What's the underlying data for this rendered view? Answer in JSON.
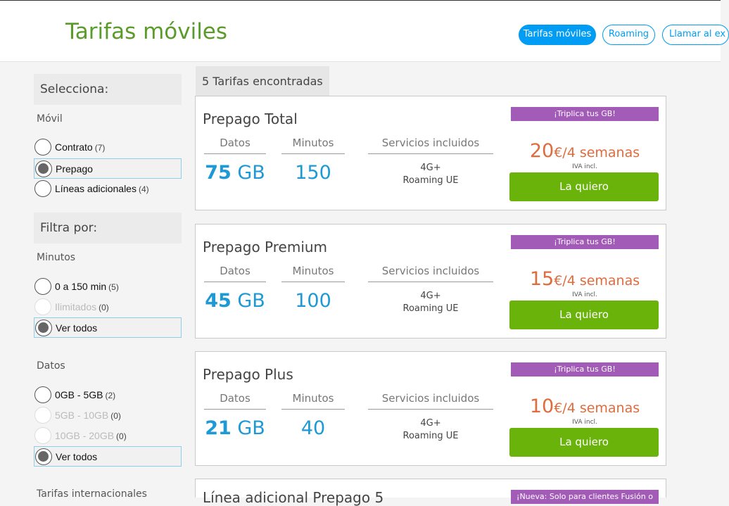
{
  "header": {
    "title": "Tarifas móviles",
    "nav": [
      "Tarifas móviles",
      "Roaming",
      "Llamar al ex"
    ]
  },
  "sidebar": {
    "select_title": "Selecciona:",
    "movil": {
      "label": "Móvil",
      "options": [
        {
          "label": "Contrato",
          "count": "(7)"
        },
        {
          "label": "Prepago",
          "count": ""
        },
        {
          "label": "Líneas adicionales",
          "count": "(4)"
        }
      ]
    },
    "filter_title": "Filtra por:",
    "minutos": {
      "label": "Minutos",
      "options": [
        {
          "label": "0 a 150 min",
          "count": "(5)"
        },
        {
          "label": "Ilimitados",
          "count": "(0)"
        },
        {
          "label": "Ver todos",
          "count": ""
        }
      ]
    },
    "datos": {
      "label": "Datos",
      "options": [
        {
          "label": "0GB - 5GB",
          "count": "(2)"
        },
        {
          "label": "5GB - 10GB",
          "count": "(0)"
        },
        {
          "label": "10GB - 20GB",
          "count": "(0)"
        },
        {
          "label": "Ver todos",
          "count": ""
        }
      ]
    },
    "internacionales_label": "Tarifas internacionales"
  },
  "results": {
    "count_label": "5 Tarifas encontradas",
    "col_datos": "Datos",
    "col_minutos": "Minutos",
    "col_servicios": "Servicios incluidos",
    "iva": "IVA incl.",
    "cta": "La quiero",
    "cards": [
      {
        "name": "Prepago Total",
        "promo": "¡Triplica tus GB!",
        "data_num": "75",
        "data_unit": "GB",
        "minutes": "150",
        "service1": "4G+",
        "service2": "Roaming UE",
        "price": "20",
        "period": "€/4 semanas"
      },
      {
        "name": "Prepago Premium",
        "promo": "¡Triplica tus GB!",
        "data_num": "45",
        "data_unit": "GB",
        "minutes": "100",
        "service1": "4G+",
        "service2": "Roaming UE",
        "price": "15",
        "period": "€/4 semanas"
      },
      {
        "name": "Prepago Plus",
        "promo": "¡Triplica tus GB!",
        "data_num": "21",
        "data_unit": "GB",
        "minutes": "40",
        "service1": "4G+",
        "service2": "Roaming UE",
        "price": "10",
        "period": "€/4 semanas"
      },
      {
        "name": "Línea adicional Prepago 5",
        "promo": "¡Nueva: Solo para clientes Fusión o",
        "data_num": "",
        "data_unit": "",
        "minutes": "",
        "service1": "",
        "service2": "",
        "price": "",
        "period": ""
      }
    ]
  }
}
